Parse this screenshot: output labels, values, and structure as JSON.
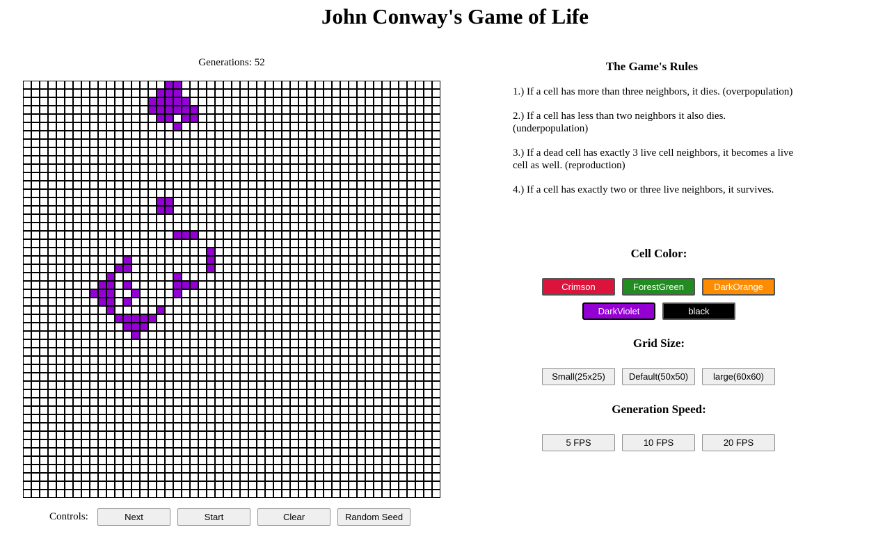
{
  "title": "John Conway's Game of Life",
  "generations_label": "Generations: 52",
  "grid": {
    "cols": 50,
    "rows": 50,
    "live_color": "#9400D3",
    "dead_color": "#ffffff",
    "live_cells": [
      [
        0,
        17
      ],
      [
        0,
        18
      ],
      [
        1,
        16
      ],
      [
        1,
        17
      ],
      [
        1,
        18
      ],
      [
        2,
        15
      ],
      [
        2,
        16
      ],
      [
        2,
        17
      ],
      [
        2,
        18
      ],
      [
        2,
        19
      ],
      [
        3,
        15
      ],
      [
        3,
        16
      ],
      [
        3,
        17
      ],
      [
        3,
        18
      ],
      [
        3,
        19
      ],
      [
        3,
        20
      ],
      [
        4,
        16
      ],
      [
        4,
        17
      ],
      [
        4,
        19
      ],
      [
        4,
        20
      ],
      [
        5,
        18
      ],
      [
        14,
        16
      ],
      [
        14,
        17
      ],
      [
        15,
        16
      ],
      [
        15,
        17
      ],
      [
        18,
        18
      ],
      [
        18,
        19
      ],
      [
        18,
        20
      ],
      [
        20,
        22
      ],
      [
        21,
        12
      ],
      [
        21,
        22
      ],
      [
        22,
        11
      ],
      [
        22,
        12
      ],
      [
        22,
        22
      ],
      [
        23,
        10
      ],
      [
        23,
        18
      ],
      [
        24,
        9
      ],
      [
        24,
        10
      ],
      [
        24,
        12
      ],
      [
        24,
        18
      ],
      [
        24,
        19
      ],
      [
        24,
        20
      ],
      [
        25,
        8
      ],
      [
        25,
        9
      ],
      [
        25,
        10
      ],
      [
        25,
        13
      ],
      [
        25,
        18
      ],
      [
        26,
        9
      ],
      [
        26,
        10
      ],
      [
        26,
        12
      ],
      [
        27,
        10
      ],
      [
        27,
        16
      ],
      [
        28,
        11
      ],
      [
        28,
        12
      ],
      [
        28,
        13
      ],
      [
        28,
        14
      ],
      [
        28,
        15
      ],
      [
        29,
        12
      ],
      [
        29,
        13
      ],
      [
        29,
        14
      ],
      [
        30,
        13
      ]
    ]
  },
  "controls": {
    "label": "Controls:",
    "next": "Next",
    "start": "Start",
    "clear": "Clear",
    "random_seed": "Random Seed"
  },
  "rules": {
    "heading": "The Game's Rules",
    "items": [
      "1.) If a cell has more than three neighbors, it dies. (overpopulation)",
      "2.) If a cell has less than two neighbors it also dies. (underpopulation)",
      "3.) If a dead cell has exactly 3 live cell neighbors, it becomes a live cell as well. (reproduction)",
      "4.) If a cell has exactly two or three live neighbors, it survives."
    ]
  },
  "cell_color": {
    "heading": "Cell Color:",
    "selected": "DarkViolet",
    "options": [
      {
        "label": "Crimson",
        "color": "#DC143C"
      },
      {
        "label": "ForestGreen",
        "color": "#228B22"
      },
      {
        "label": "DarkOrange",
        "color": "#FF8C00"
      },
      {
        "label": "DarkViolet",
        "color": "#9400D3"
      },
      {
        "label": "black",
        "color": "#000000"
      }
    ]
  },
  "grid_size": {
    "heading": "Grid Size:",
    "options": [
      "Small(25x25)",
      "Default(50x50)",
      "large(60x60)"
    ]
  },
  "generation_speed": {
    "heading": "Generation Speed:",
    "options": [
      "5 FPS",
      "10 FPS",
      "20 FPS"
    ]
  }
}
